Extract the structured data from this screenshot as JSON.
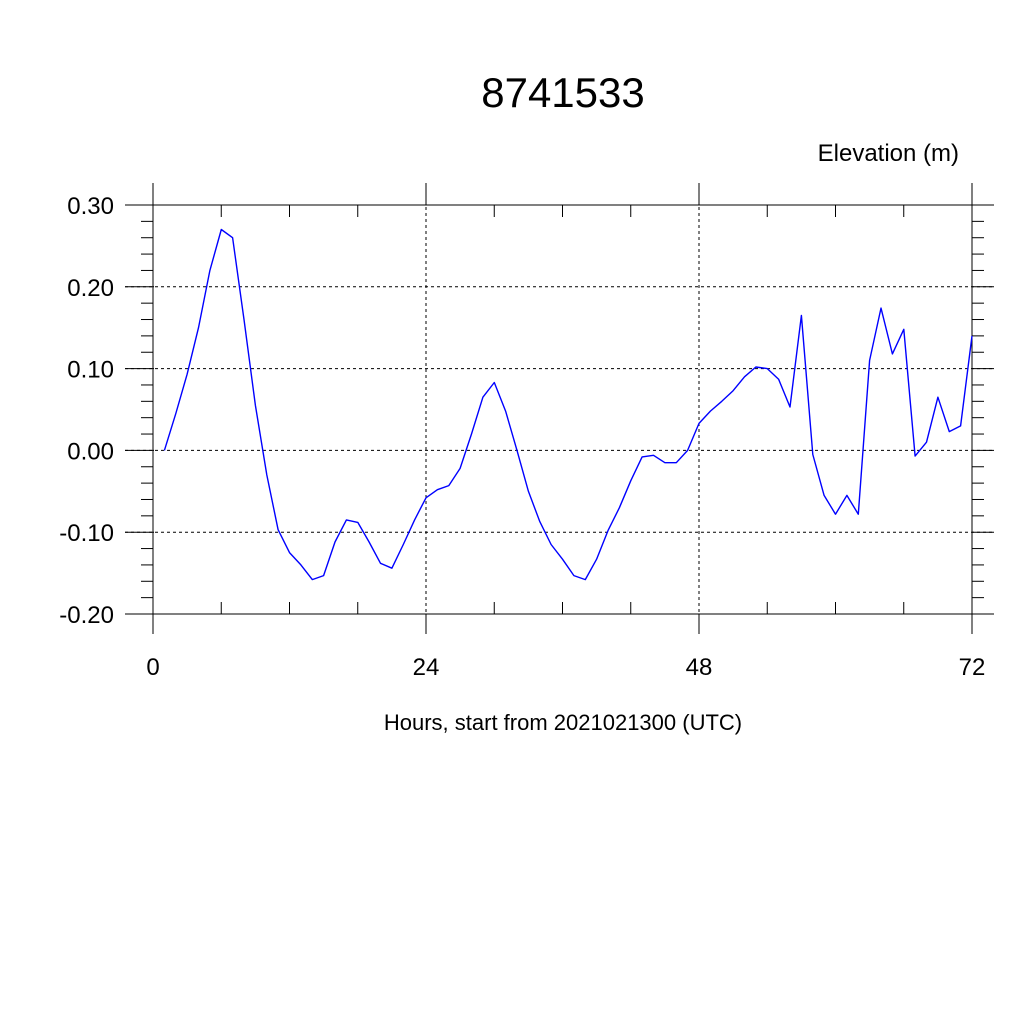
{
  "chart_data": {
    "type": "line",
    "title": "8741533",
    "ylabel": "Elevation (m)",
    "xlabel": "Hours, start from 2021021300 (UTC)",
    "xlim": [
      0,
      72
    ],
    "ylim": [
      -0.2,
      0.3
    ],
    "x_ticks": [
      0,
      24,
      48,
      72
    ],
    "x_tick_labels": [
      "0",
      "24",
      "48",
      "72"
    ],
    "y_ticks": [
      -0.2,
      -0.1,
      0.0,
      0.1,
      0.2,
      0.3
    ],
    "y_tick_labels": [
      "-0.20",
      "-0.10",
      "0.00",
      "0.10",
      "0.20",
      "0.30"
    ],
    "grid": true,
    "series": [
      {
        "color": "#0000ff",
        "x": [
          1,
          2,
          3,
          4,
          5,
          6,
          7,
          8,
          9,
          10,
          11,
          12,
          13,
          14,
          15,
          16,
          17,
          18,
          19,
          20,
          21,
          22,
          23,
          24,
          25,
          26,
          27,
          28,
          29,
          30,
          31,
          32,
          33,
          34,
          35,
          36,
          37,
          38,
          39,
          40,
          41,
          42,
          43,
          44,
          45,
          46,
          47,
          48,
          49,
          50,
          51,
          52,
          53,
          54,
          55,
          56,
          57,
          58,
          59,
          60,
          61,
          62,
          63,
          64,
          65,
          66,
          67,
          68,
          69,
          70,
          71,
          72
        ],
        "y": [
          0.0,
          0.045,
          0.093,
          0.15,
          0.22,
          0.27,
          0.26,
          0.16,
          0.055,
          -0.03,
          -0.097,
          -0.125,
          -0.14,
          -0.158,
          -0.153,
          -0.112,
          -0.085,
          -0.088,
          -0.112,
          -0.138,
          -0.144,
          -0.115,
          -0.085,
          -0.058,
          -0.048,
          -0.043,
          -0.022,
          0.02,
          0.065,
          0.083,
          0.048,
          0.0,
          -0.05,
          -0.087,
          -0.115,
          -0.133,
          -0.153,
          -0.158,
          -0.133,
          -0.098,
          -0.07,
          -0.037,
          -0.008,
          -0.006,
          -0.015,
          -0.015,
          0.0,
          0.033,
          0.048,
          0.06,
          0.073,
          0.09,
          0.102,
          0.1,
          0.087,
          0.053,
          0.165,
          -0.005,
          -0.055,
          -0.078,
          -0.055,
          -0.078,
          0.11,
          0.174,
          0.118,
          0.148,
          -0.007,
          0.01,
          0.065,
          0.023,
          0.03,
          0.14
        ]
      }
    ]
  }
}
